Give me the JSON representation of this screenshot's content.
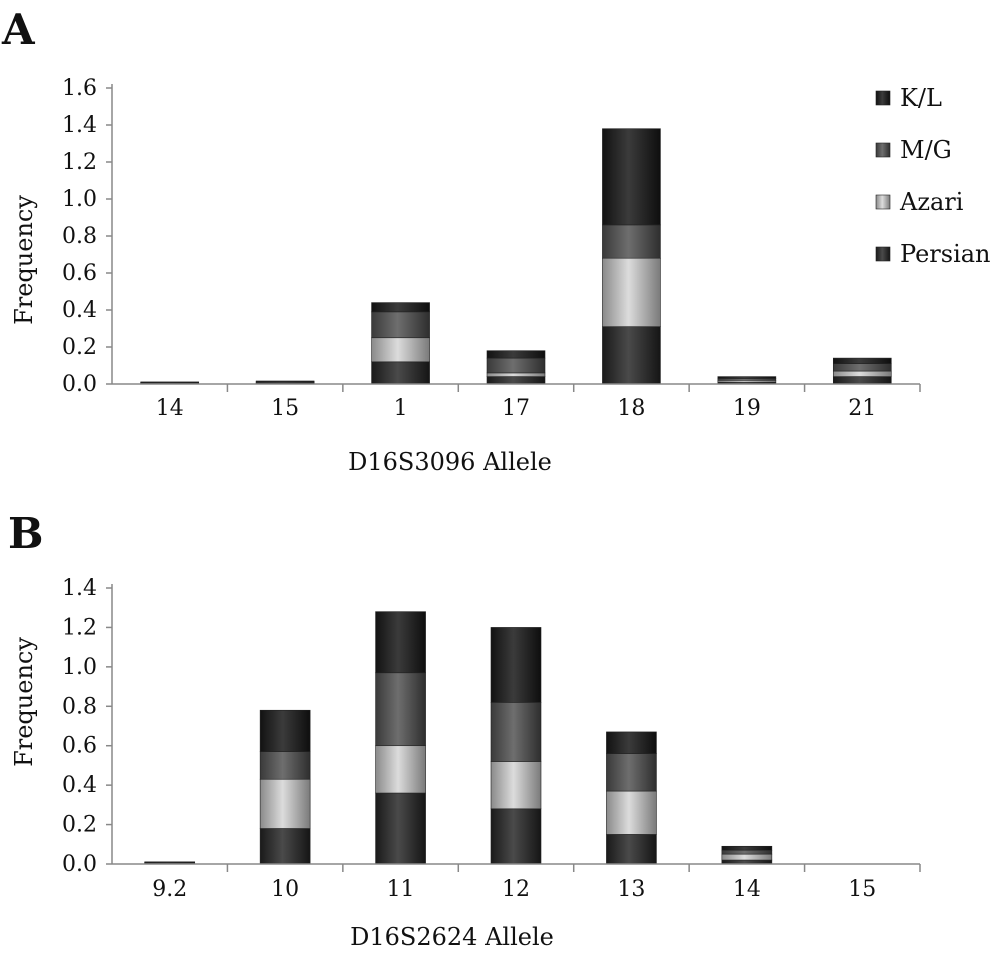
{
  "chart_data": [
    {
      "type": "bar",
      "stacked": true,
      "panel_label": "A",
      "xlabel": "D16S3096 Allele",
      "ylabel": "Frequency",
      "ylim": [
        0,
        1.6
      ],
      "yticks": [
        "0.0",
        "0.2",
        "0.4",
        "0.6",
        "0.8",
        "1.0",
        "1.2",
        "1.4",
        "1.6"
      ],
      "categories": [
        "14",
        "15",
        "1",
        "17",
        "18",
        "19",
        "21"
      ],
      "legend_position": "top-right",
      "series": [
        {
          "name": "Persian",
          "color": "#3a3a3a",
          "values": [
            0.003,
            0.004,
            0.12,
            0.04,
            0.31,
            0.01,
            0.04
          ]
        },
        {
          "name": "Azari",
          "color": "#b0b0b0",
          "values": [
            0.002,
            0.004,
            0.13,
            0.02,
            0.37,
            0.01,
            0.03
          ]
        },
        {
          "name": "M/G",
          "color": "#5c5c5c",
          "values": [
            0.002,
            0.004,
            0.14,
            0.08,
            0.18,
            0.01,
            0.04
          ]
        },
        {
          "name": "K/L",
          "color": "#2a2a2a",
          "values": [
            0.003,
            0.004,
            0.05,
            0.04,
            0.52,
            0.01,
            0.03
          ]
        }
      ]
    },
    {
      "type": "bar",
      "stacked": true,
      "panel_label": "B",
      "xlabel": "D16S2624 Allele",
      "ylabel": "Frequency",
      "ylim": [
        0,
        1.4
      ],
      "yticks": [
        "0.0",
        "0.2",
        "0.4",
        "0.6",
        "0.8",
        "1.0",
        "1.2",
        "1.4"
      ],
      "categories": [
        "9.2",
        "10",
        "11",
        "12",
        "13",
        "14",
        "15"
      ],
      "series": [
        {
          "name": "Persian",
          "color": "#3a3a3a",
          "values": [
            0.003,
            0.18,
            0.36,
            0.28,
            0.15,
            0.02,
            0
          ]
        },
        {
          "name": "Azari",
          "color": "#b0b0b0",
          "values": [
            0.002,
            0.25,
            0.24,
            0.24,
            0.22,
            0.03,
            0
          ]
        },
        {
          "name": "M/G",
          "color": "#5c5c5c",
          "values": [
            0.002,
            0.14,
            0.37,
            0.3,
            0.19,
            0.02,
            0
          ]
        },
        {
          "name": "K/L",
          "color": "#2a2a2a",
          "values": [
            0.003,
            0.21,
            0.31,
            0.38,
            0.11,
            0.02,
            0
          ]
        }
      ]
    }
  ]
}
